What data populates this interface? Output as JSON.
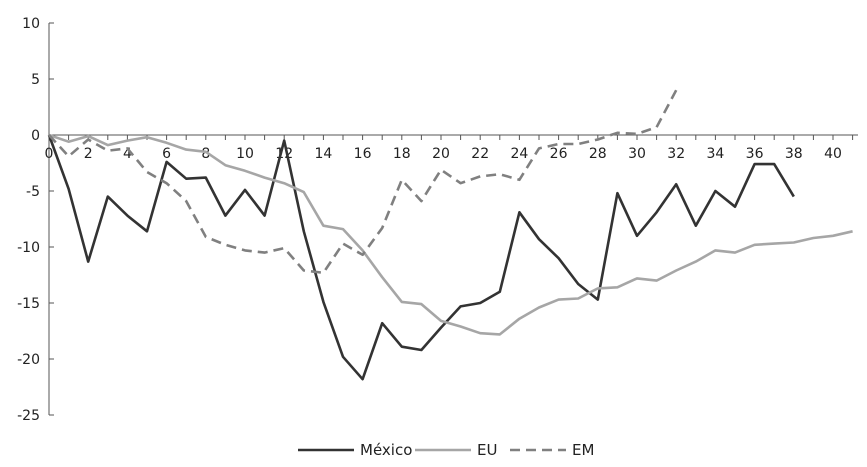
{
  "chart_data": {
    "type": "line",
    "title": "",
    "xlabel": "",
    "ylabel": "",
    "xlim": [
      0,
      41
    ],
    "ylim": [
      -25,
      10
    ],
    "x_ticks": [
      "0",
      "2",
      "4",
      "6",
      "8",
      "10",
      "12",
      "14",
      "16",
      "18",
      "20",
      "22",
      "24",
      "26",
      "28",
      "30",
      "32",
      "34",
      "36",
      "38",
      "40"
    ],
    "y_ticks": [
      "10",
      "5",
      "0",
      "-5",
      "-10",
      "-15",
      "-20",
      "-25"
    ],
    "legend_position": "bottom",
    "grid": false,
    "series": [
      {
        "name": "México",
        "color": "#333333",
        "style": "solid",
        "x": [
          0,
          1,
          2,
          3,
          4,
          5,
          6,
          7,
          8,
          9,
          10,
          11,
          12,
          13,
          14,
          15,
          16,
          17,
          18,
          19,
          20,
          21,
          22,
          23,
          24,
          25,
          26,
          27,
          28,
          29,
          30,
          31,
          32,
          33,
          34,
          35,
          36,
          37,
          38
        ],
        "values": [
          0,
          -4.8,
          -11.3,
          -5.5,
          -7.2,
          -8.6,
          -2.4,
          -3.9,
          -3.8,
          -7.2,
          -4.9,
          -7.2,
          -0.5,
          -8.6,
          -14.9,
          -19.8,
          -21.8,
          -16.8,
          -18.9,
          -19.2,
          -17.2,
          -15.3,
          -15.0,
          -14.0,
          -6.9,
          -9.3,
          -11.0,
          -13.3,
          -14.7,
          -5.2,
          -9.0,
          -6.9,
          -4.4,
          -8.1,
          -5.0,
          -6.4,
          -2.6,
          -2.6,
          -5.5
        ]
      },
      {
        "name": "EU",
        "color": "#a6a6a6",
        "style": "solid",
        "x": [
          0,
          1,
          2,
          3,
          4,
          5,
          6,
          7,
          8,
          9,
          10,
          11,
          12,
          13,
          14,
          15,
          16,
          17,
          18,
          19,
          20,
          21,
          22,
          23,
          24,
          25,
          26,
          27,
          28,
          29,
          30,
          31,
          32,
          33,
          34,
          35,
          36,
          37,
          38,
          39,
          40,
          41
        ],
        "values": [
          0,
          -0.6,
          -0.1,
          -0.9,
          -0.5,
          -0.2,
          -0.7,
          -1.3,
          -1.5,
          -2.7,
          -3.2,
          -3.8,
          -4.3,
          -5.1,
          -8.1,
          -8.4,
          -10.3,
          -12.7,
          -14.9,
          -15.1,
          -16.6,
          -17.1,
          -17.7,
          -17.8,
          -16.4,
          -15.4,
          -14.7,
          -14.6,
          -13.7,
          -13.6,
          -12.8,
          -13.0,
          -12.1,
          -11.3,
          -10.3,
          -10.5,
          -9.8,
          -9.7,
          -9.6,
          -9.2,
          -9.0,
          -8.6
        ]
      },
      {
        "name": "EM",
        "color": "#808080",
        "style": "dashed",
        "x": [
          0,
          1,
          2,
          3,
          4,
          5,
          6,
          7,
          8,
          9,
          10,
          11,
          12,
          13,
          14,
          15,
          16,
          17,
          18,
          19,
          20,
          21,
          22,
          23,
          24,
          25,
          26,
          27,
          28,
          29,
          30,
          31,
          32
        ],
        "values": [
          0,
          -1.9,
          -0.4,
          -1.4,
          -1.2,
          -3.3,
          -4.3,
          -5.9,
          -9.1,
          -9.8,
          -10.3,
          -10.5,
          -10.1,
          -12.1,
          -12.3,
          -9.7,
          -10.7,
          -8.3,
          -4.0,
          -5.9,
          -3.1,
          -4.3,
          -3.7,
          -3.5,
          -4.0,
          -1.2,
          -0.8,
          -0.8,
          -0.4,
          0.2,
          0.1,
          0.7,
          4.0
        ]
      }
    ]
  }
}
